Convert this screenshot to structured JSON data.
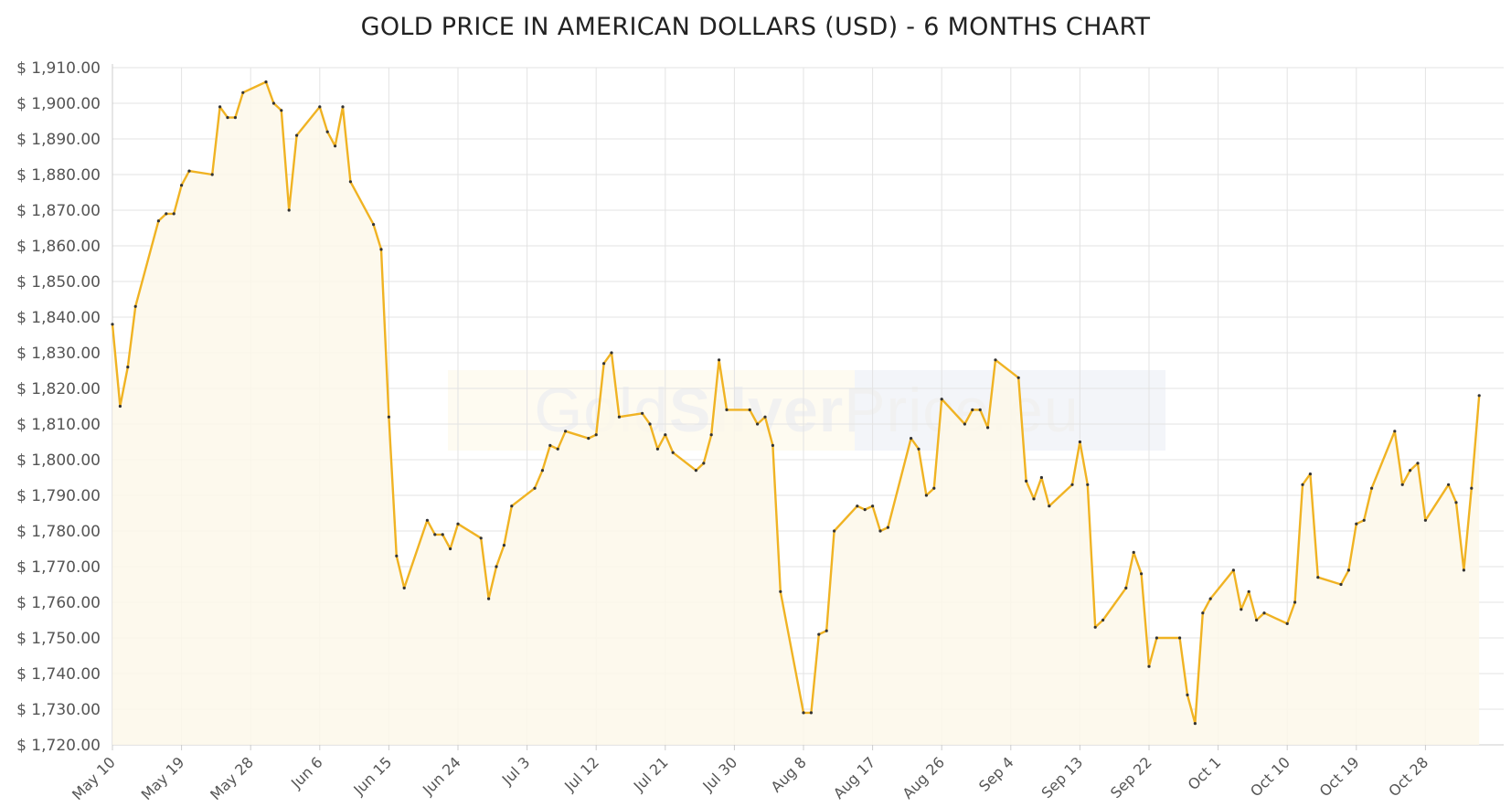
{
  "chart_data": {
    "type": "area",
    "title": "GOLD PRICE IN AMERICAN DOLLARS (USD) - 6 MONTHS CHART",
    "watermark": [
      "Gold",
      "Silver",
      "Price.eu"
    ],
    "ylim": [
      1720,
      1910
    ],
    "xlim": [
      "2021-05-10",
      "2021-11-04"
    ],
    "y_ticks": [
      "$ 1,720.00",
      "$ 1,730.00",
      "$ 1,740.00",
      "$ 1,750.00",
      "$ 1,760.00",
      "$ 1,770.00",
      "$ 1,780.00",
      "$ 1,790.00",
      "$ 1,800.00",
      "$ 1,810.00",
      "$ 1,820.00",
      "$ 1,830.00",
      "$ 1,840.00",
      "$ 1,850.00",
      "$ 1,860.00",
      "$ 1,870.00",
      "$ 1,880.00",
      "$ 1,890.00",
      "$ 1,900.00",
      "$ 1,910.00"
    ],
    "x_ticks": [
      {
        "date": "2021-05-10",
        "label": "May 10"
      },
      {
        "date": "2021-05-19",
        "label": "May 19"
      },
      {
        "date": "2021-05-28",
        "label": "May 28"
      },
      {
        "date": "2021-06-06",
        "label": "Jun 6"
      },
      {
        "date": "2021-06-15",
        "label": "Jun 15"
      },
      {
        "date": "2021-06-24",
        "label": "Jun 24"
      },
      {
        "date": "2021-07-03",
        "label": "Jul 3"
      },
      {
        "date": "2021-07-12",
        "label": "Jul 12"
      },
      {
        "date": "2021-07-21",
        "label": "Jul 21"
      },
      {
        "date": "2021-07-30",
        "label": "Jul 30"
      },
      {
        "date": "2021-08-08",
        "label": "Aug 8"
      },
      {
        "date": "2021-08-17",
        "label": "Aug 17"
      },
      {
        "date": "2021-08-26",
        "label": "Aug 26"
      },
      {
        "date": "2021-09-04",
        "label": "Sep 4"
      },
      {
        "date": "2021-09-13",
        "label": "Sep 13"
      },
      {
        "date": "2021-09-22",
        "label": "Sep 22"
      },
      {
        "date": "2021-10-01",
        "label": "Oct 1"
      },
      {
        "date": "2021-10-10",
        "label": "Oct 10"
      },
      {
        "date": "2021-10-19",
        "label": "Oct 19"
      },
      {
        "date": "2021-10-28",
        "label": "Oct 28"
      }
    ],
    "grid": true,
    "colors": {
      "line": "#f0b323",
      "fill": "#fdf8ea",
      "marker": "#333333",
      "grid": "#e3e3e3",
      "axis": "#cccccc"
    },
    "series": [
      {
        "points": [
          [
            "2021-05-10",
            1838
          ],
          [
            "2021-05-11",
            1815
          ],
          [
            "2021-05-12",
            1826
          ],
          [
            "2021-05-13",
            1843
          ],
          [
            "2021-05-16",
            1867
          ],
          [
            "2021-05-17",
            1869
          ],
          [
            "2021-05-18",
            1869
          ],
          [
            "2021-05-19",
            1877
          ],
          [
            "2021-05-20",
            1881
          ],
          [
            "2021-05-23",
            1880
          ],
          [
            "2021-05-24",
            1899
          ],
          [
            "2021-05-25",
            1896
          ],
          [
            "2021-05-26",
            1896
          ],
          [
            "2021-05-27",
            1903
          ],
          [
            "2021-05-30",
            1906
          ],
          [
            "2021-05-31",
            1900
          ],
          [
            "2021-06-01",
            1898
          ],
          [
            "2021-06-02",
            1870
          ],
          [
            "2021-06-03",
            1891
          ],
          [
            "2021-06-06",
            1899
          ],
          [
            "2021-06-07",
            1892
          ],
          [
            "2021-06-08",
            1888
          ],
          [
            "2021-06-09",
            1899
          ],
          [
            "2021-06-10",
            1878
          ],
          [
            "2021-06-13",
            1866
          ],
          [
            "2021-06-14",
            1859
          ],
          [
            "2021-06-15",
            1812
          ],
          [
            "2021-06-16",
            1773
          ],
          [
            "2021-06-17",
            1764
          ],
          [
            "2021-06-20",
            1783
          ],
          [
            "2021-06-21",
            1779
          ],
          [
            "2021-06-22",
            1779
          ],
          [
            "2021-06-23",
            1775
          ],
          [
            "2021-06-24",
            1782
          ],
          [
            "2021-06-27",
            1778
          ],
          [
            "2021-06-28",
            1761
          ],
          [
            "2021-06-29",
            1770
          ],
          [
            "2021-06-30",
            1776
          ],
          [
            "2021-07-01",
            1787
          ],
          [
            "2021-07-04",
            1792
          ],
          [
            "2021-07-05",
            1797
          ],
          [
            "2021-07-06",
            1804
          ],
          [
            "2021-07-07",
            1803
          ],
          [
            "2021-07-08",
            1808
          ],
          [
            "2021-07-11",
            1806
          ],
          [
            "2021-07-12",
            1807
          ],
          [
            "2021-07-13",
            1827
          ],
          [
            "2021-07-14",
            1830
          ],
          [
            "2021-07-15",
            1812
          ],
          [
            "2021-07-18",
            1813
          ],
          [
            "2021-07-19",
            1810
          ],
          [
            "2021-07-20",
            1803
          ],
          [
            "2021-07-21",
            1807
          ],
          [
            "2021-07-22",
            1802
          ],
          [
            "2021-07-25",
            1797
          ],
          [
            "2021-07-26",
            1799
          ],
          [
            "2021-07-27",
            1807
          ],
          [
            "2021-07-28",
            1828
          ],
          [
            "2021-07-29",
            1814
          ],
          [
            "2021-08-01",
            1814
          ],
          [
            "2021-08-02",
            1810
          ],
          [
            "2021-08-03",
            1812
          ],
          [
            "2021-08-04",
            1804
          ],
          [
            "2021-08-05",
            1763
          ],
          [
            "2021-08-08",
            1729
          ],
          [
            "2021-08-09",
            1729
          ],
          [
            "2021-08-10",
            1751
          ],
          [
            "2021-08-11",
            1752
          ],
          [
            "2021-08-12",
            1780
          ],
          [
            "2021-08-15",
            1787
          ],
          [
            "2021-08-16",
            1786
          ],
          [
            "2021-08-17",
            1787
          ],
          [
            "2021-08-18",
            1780
          ],
          [
            "2021-08-19",
            1781
          ],
          [
            "2021-08-22",
            1806
          ],
          [
            "2021-08-23",
            1803
          ],
          [
            "2021-08-24",
            1790
          ],
          [
            "2021-08-25",
            1792
          ],
          [
            "2021-08-26",
            1817
          ],
          [
            "2021-08-29",
            1810
          ],
          [
            "2021-08-30",
            1814
          ],
          [
            "2021-08-31",
            1814
          ],
          [
            "2021-09-01",
            1809
          ],
          [
            "2021-09-02",
            1828
          ],
          [
            "2021-09-05",
            1823
          ],
          [
            "2021-09-06",
            1794
          ],
          [
            "2021-09-07",
            1789
          ],
          [
            "2021-09-08",
            1795
          ],
          [
            "2021-09-09",
            1787
          ],
          [
            "2021-09-12",
            1793
          ],
          [
            "2021-09-13",
            1805
          ],
          [
            "2021-09-14",
            1793
          ],
          [
            "2021-09-15",
            1753
          ],
          [
            "2021-09-16",
            1755
          ],
          [
            "2021-09-19",
            1764
          ],
          [
            "2021-09-20",
            1774
          ],
          [
            "2021-09-21",
            1768
          ],
          [
            "2021-09-22",
            1742
          ],
          [
            "2021-09-23",
            1750
          ],
          [
            "2021-09-26",
            1750
          ],
          [
            "2021-09-27",
            1734
          ],
          [
            "2021-09-28",
            1726
          ],
          [
            "2021-09-29",
            1757
          ],
          [
            "2021-09-30",
            1761
          ],
          [
            "2021-10-03",
            1769
          ],
          [
            "2021-10-04",
            1758
          ],
          [
            "2021-10-05",
            1763
          ],
          [
            "2021-10-06",
            1755
          ],
          [
            "2021-10-07",
            1757
          ],
          [
            "2021-10-10",
            1754
          ],
          [
            "2021-10-11",
            1760
          ],
          [
            "2021-10-12",
            1793
          ],
          [
            "2021-10-13",
            1796
          ],
          [
            "2021-10-14",
            1767
          ],
          [
            "2021-10-17",
            1765
          ],
          [
            "2021-10-18",
            1769
          ],
          [
            "2021-10-19",
            1782
          ],
          [
            "2021-10-20",
            1783
          ],
          [
            "2021-10-21",
            1792
          ],
          [
            "2021-10-24",
            1808
          ],
          [
            "2021-10-25",
            1793
          ],
          [
            "2021-10-26",
            1797
          ],
          [
            "2021-10-27",
            1799
          ],
          [
            "2021-10-28",
            1783
          ],
          [
            "2021-10-31",
            1793
          ],
          [
            "2021-11-01",
            1788
          ],
          [
            "2021-11-02",
            1769
          ],
          [
            "2021-11-03",
            1792
          ],
          [
            "2021-11-04",
            1818
          ]
        ]
      }
    ]
  }
}
